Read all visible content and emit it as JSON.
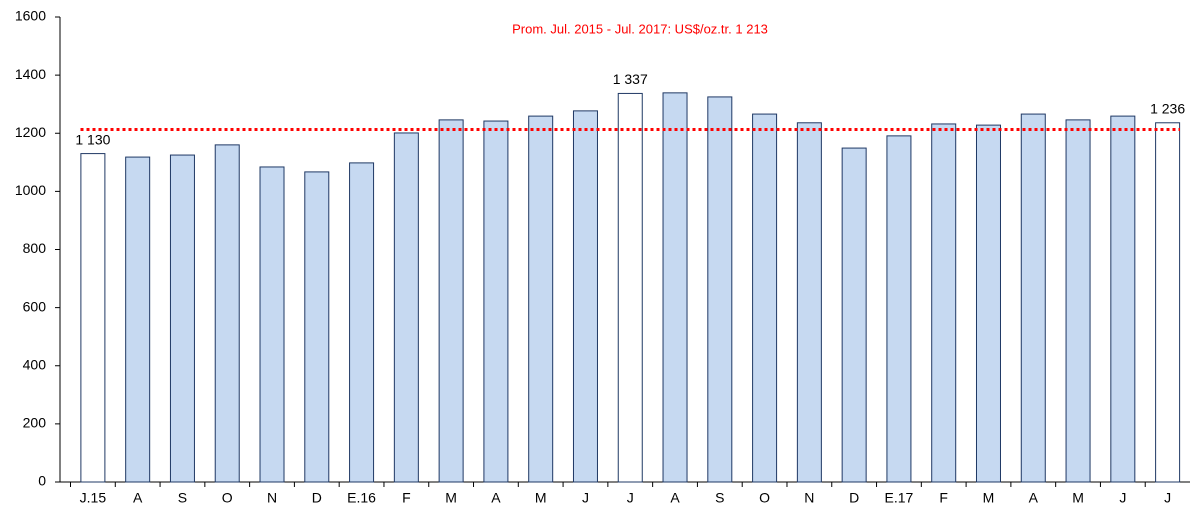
{
  "chart_data": {
    "type": "bar",
    "annotation": "Prom. Jul. 2015 - Jul. 2017: US$/oz.tr. 1 213",
    "annotation_color": "#ff0000",
    "reference_line": 1213,
    "categories": [
      "J.15",
      "A",
      "S",
      "O",
      "N",
      "D",
      "E.16",
      "F",
      "M",
      "A",
      "M",
      "J",
      "J",
      "A",
      "S",
      "O",
      "N",
      "D",
      "E.17",
      "F",
      "M",
      "A",
      "M",
      "J",
      "J"
    ],
    "values": [
      1130,
      1118,
      1125,
      1160,
      1084,
      1067,
      1098,
      1201,
      1246,
      1242,
      1259,
      1277,
      1337,
      1339,
      1325,
      1266,
      1236,
      1149,
      1191,
      1232,
      1228,
      1266,
      1246,
      1259,
      1236
    ],
    "value_labels": [
      "1 130",
      null,
      null,
      null,
      null,
      null,
      null,
      null,
      null,
      null,
      null,
      null,
      "1 337",
      null,
      null,
      null,
      null,
      null,
      null,
      null,
      null,
      null,
      null,
      null,
      "1 236"
    ],
    "colors": [
      "#ffffff",
      "#c6d9f1",
      "#c6d9f1",
      "#c6d9f1",
      "#c6d9f1",
      "#c6d9f1",
      "#c6d9f1",
      "#c6d9f1",
      "#c6d9f1",
      "#c6d9f1",
      "#c6d9f1",
      "#c6d9f1",
      "#ffffff",
      "#c6d9f1",
      "#c6d9f1",
      "#c6d9f1",
      "#c6d9f1",
      "#c6d9f1",
      "#c6d9f1",
      "#c6d9f1",
      "#c6d9f1",
      "#c6d9f1",
      "#c6d9f1",
      "#c6d9f1",
      "#ffffff"
    ],
    "edge_color": "#1f3864",
    "ylim": [
      0,
      1600
    ],
    "yticks": [
      0,
      200,
      400,
      600,
      800,
      1000,
      1200,
      1400,
      1600
    ]
  }
}
